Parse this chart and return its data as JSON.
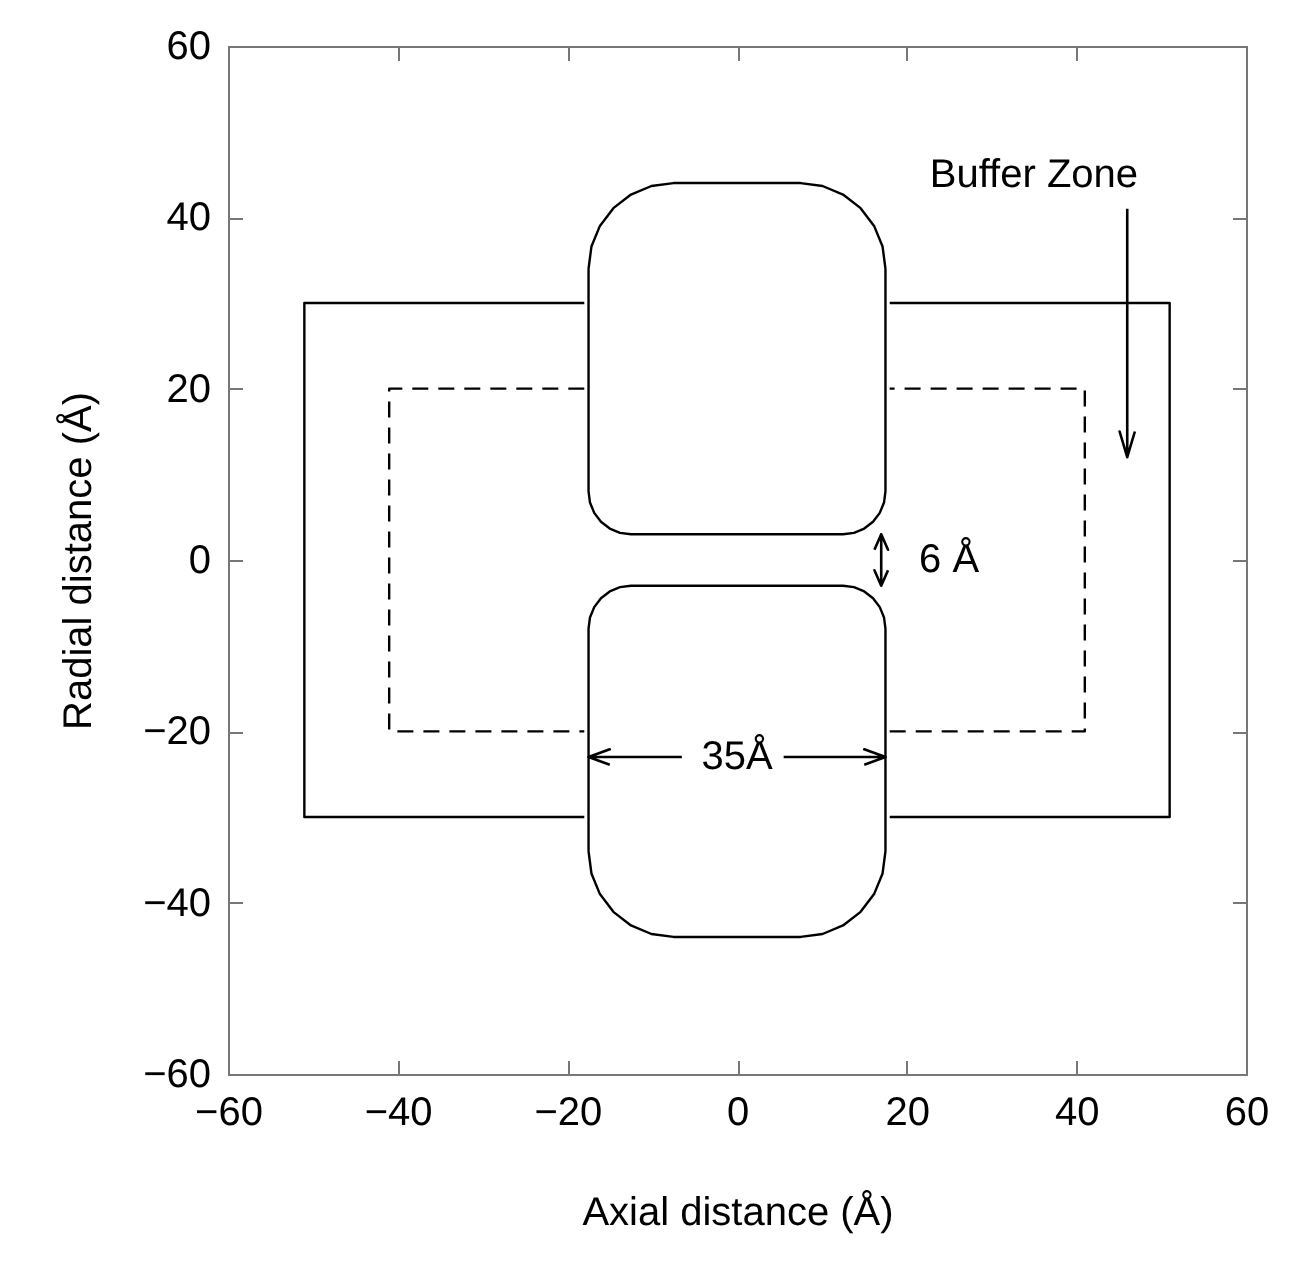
{
  "chart_data": {
    "type": "line",
    "xlabel": "Axial distance (Å)",
    "ylabel": "Radial distance (Å)",
    "xlim": [
      -60,
      60
    ],
    "ylim": [
      -60,
      60
    ],
    "xticks": [
      -60,
      -40,
      -20,
      0,
      20,
      40,
      60
    ],
    "yticks": [
      -60,
      -40,
      -20,
      0,
      20,
      40,
      60
    ],
    "series": [
      {
        "color": "#000000",
        "line_style": "solid",
        "x": [
          -18,
          -51,
          -51,
          -18,
          0,
          18,
          51,
          51,
          18
        ],
        "values": [
          30,
          30,
          -30,
          -30,
          null,
          -30,
          -30,
          30,
          30
        ]
      },
      {
        "color": "#000000",
        "line_style": "dashed",
        "x": [
          -18,
          -41,
          -41,
          -18,
          0,
          18,
          41,
          41,
          18
        ],
        "values": [
          20,
          20,
          -20,
          -20,
          null,
          -20,
          -20,
          20,
          20
        ]
      }
    ],
    "annotations": [
      "Buffer Zone",
      "6 Å",
      "35Å"
    ]
  }
}
